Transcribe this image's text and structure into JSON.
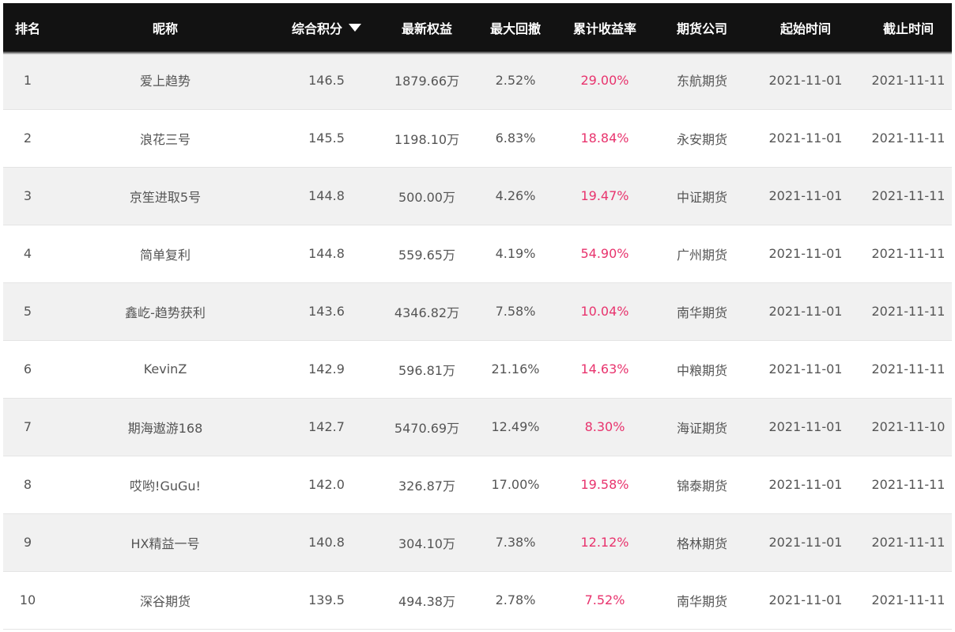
{
  "table": {
    "headers": {
      "rank": "排名",
      "nickname": "昵称",
      "score": "综合积分",
      "equity": "最新权益",
      "drawdown": "最大回撤",
      "return_rate": "累计收益率",
      "company": "期货公司",
      "start": "起始时间",
      "end": "截止时间"
    },
    "sort": {
      "column": "score",
      "direction": "descending",
      "icon": "triangle-down-icon"
    },
    "rows": [
      {
        "rank": "1",
        "nickname": "爱上趋势",
        "score": "146.5",
        "equity": "1879.66万",
        "drawdown": "2.52%",
        "return_rate": "29.00%",
        "company": "东航期货",
        "start": "2021-11-01",
        "end": "2021-11-11"
      },
      {
        "rank": "2",
        "nickname": "浪花三号",
        "score": "145.5",
        "equity": "1198.10万",
        "drawdown": "6.83%",
        "return_rate": "18.84%",
        "company": "永安期货",
        "start": "2021-11-01",
        "end": "2021-11-11"
      },
      {
        "rank": "3",
        "nickname": "京笙进取5号",
        "score": "144.8",
        "equity": "500.00万",
        "drawdown": "4.26%",
        "return_rate": "19.47%",
        "company": "中证期货",
        "start": "2021-11-01",
        "end": "2021-11-11"
      },
      {
        "rank": "4",
        "nickname": "简单复利",
        "score": "144.8",
        "equity": "559.65万",
        "drawdown": "4.19%",
        "return_rate": "54.90%",
        "company": "广州期货",
        "start": "2021-11-01",
        "end": "2021-11-11"
      },
      {
        "rank": "5",
        "nickname": "鑫屹-趋势获利",
        "score": "143.6",
        "equity": "4346.82万",
        "drawdown": "7.58%",
        "return_rate": "10.04%",
        "company": "南华期货",
        "start": "2021-11-01",
        "end": "2021-11-11"
      },
      {
        "rank": "6",
        "nickname": "KevinZ",
        "score": "142.9",
        "equity": "596.81万",
        "drawdown": "21.16%",
        "return_rate": "14.63%",
        "company": "中粮期货",
        "start": "2021-11-01",
        "end": "2021-11-11"
      },
      {
        "rank": "7",
        "nickname": "期海遨游168",
        "score": "142.7",
        "equity": "5470.69万",
        "drawdown": "12.49%",
        "return_rate": "8.30%",
        "company": "海证期货",
        "start": "2021-11-01",
        "end": "2021-11-10"
      },
      {
        "rank": "8",
        "nickname": "哎哟!GuGu!",
        "score": "142.0",
        "equity": "326.87万",
        "drawdown": "17.00%",
        "return_rate": "19.58%",
        "company": "锦泰期货",
        "start": "2021-11-01",
        "end": "2021-11-11"
      },
      {
        "rank": "9",
        "nickname": "HX精益一号",
        "score": "140.8",
        "equity": "304.10万",
        "drawdown": "7.38%",
        "return_rate": "12.12%",
        "company": "格林期货",
        "start": "2021-11-01",
        "end": "2021-11-11"
      },
      {
        "rank": "10",
        "nickname": "深谷期货",
        "score": "139.5",
        "equity": "494.38万",
        "drawdown": "2.78%",
        "return_rate": "7.52%",
        "company": "南华期货",
        "start": "2021-11-01",
        "end": "2021-11-11"
      }
    ]
  },
  "colors": {
    "header_bg": "#121212",
    "header_text": "#ffffff",
    "row_alt_bg": "#f1f1f1",
    "text": "#555555",
    "return_rate": "#e8336d"
  }
}
